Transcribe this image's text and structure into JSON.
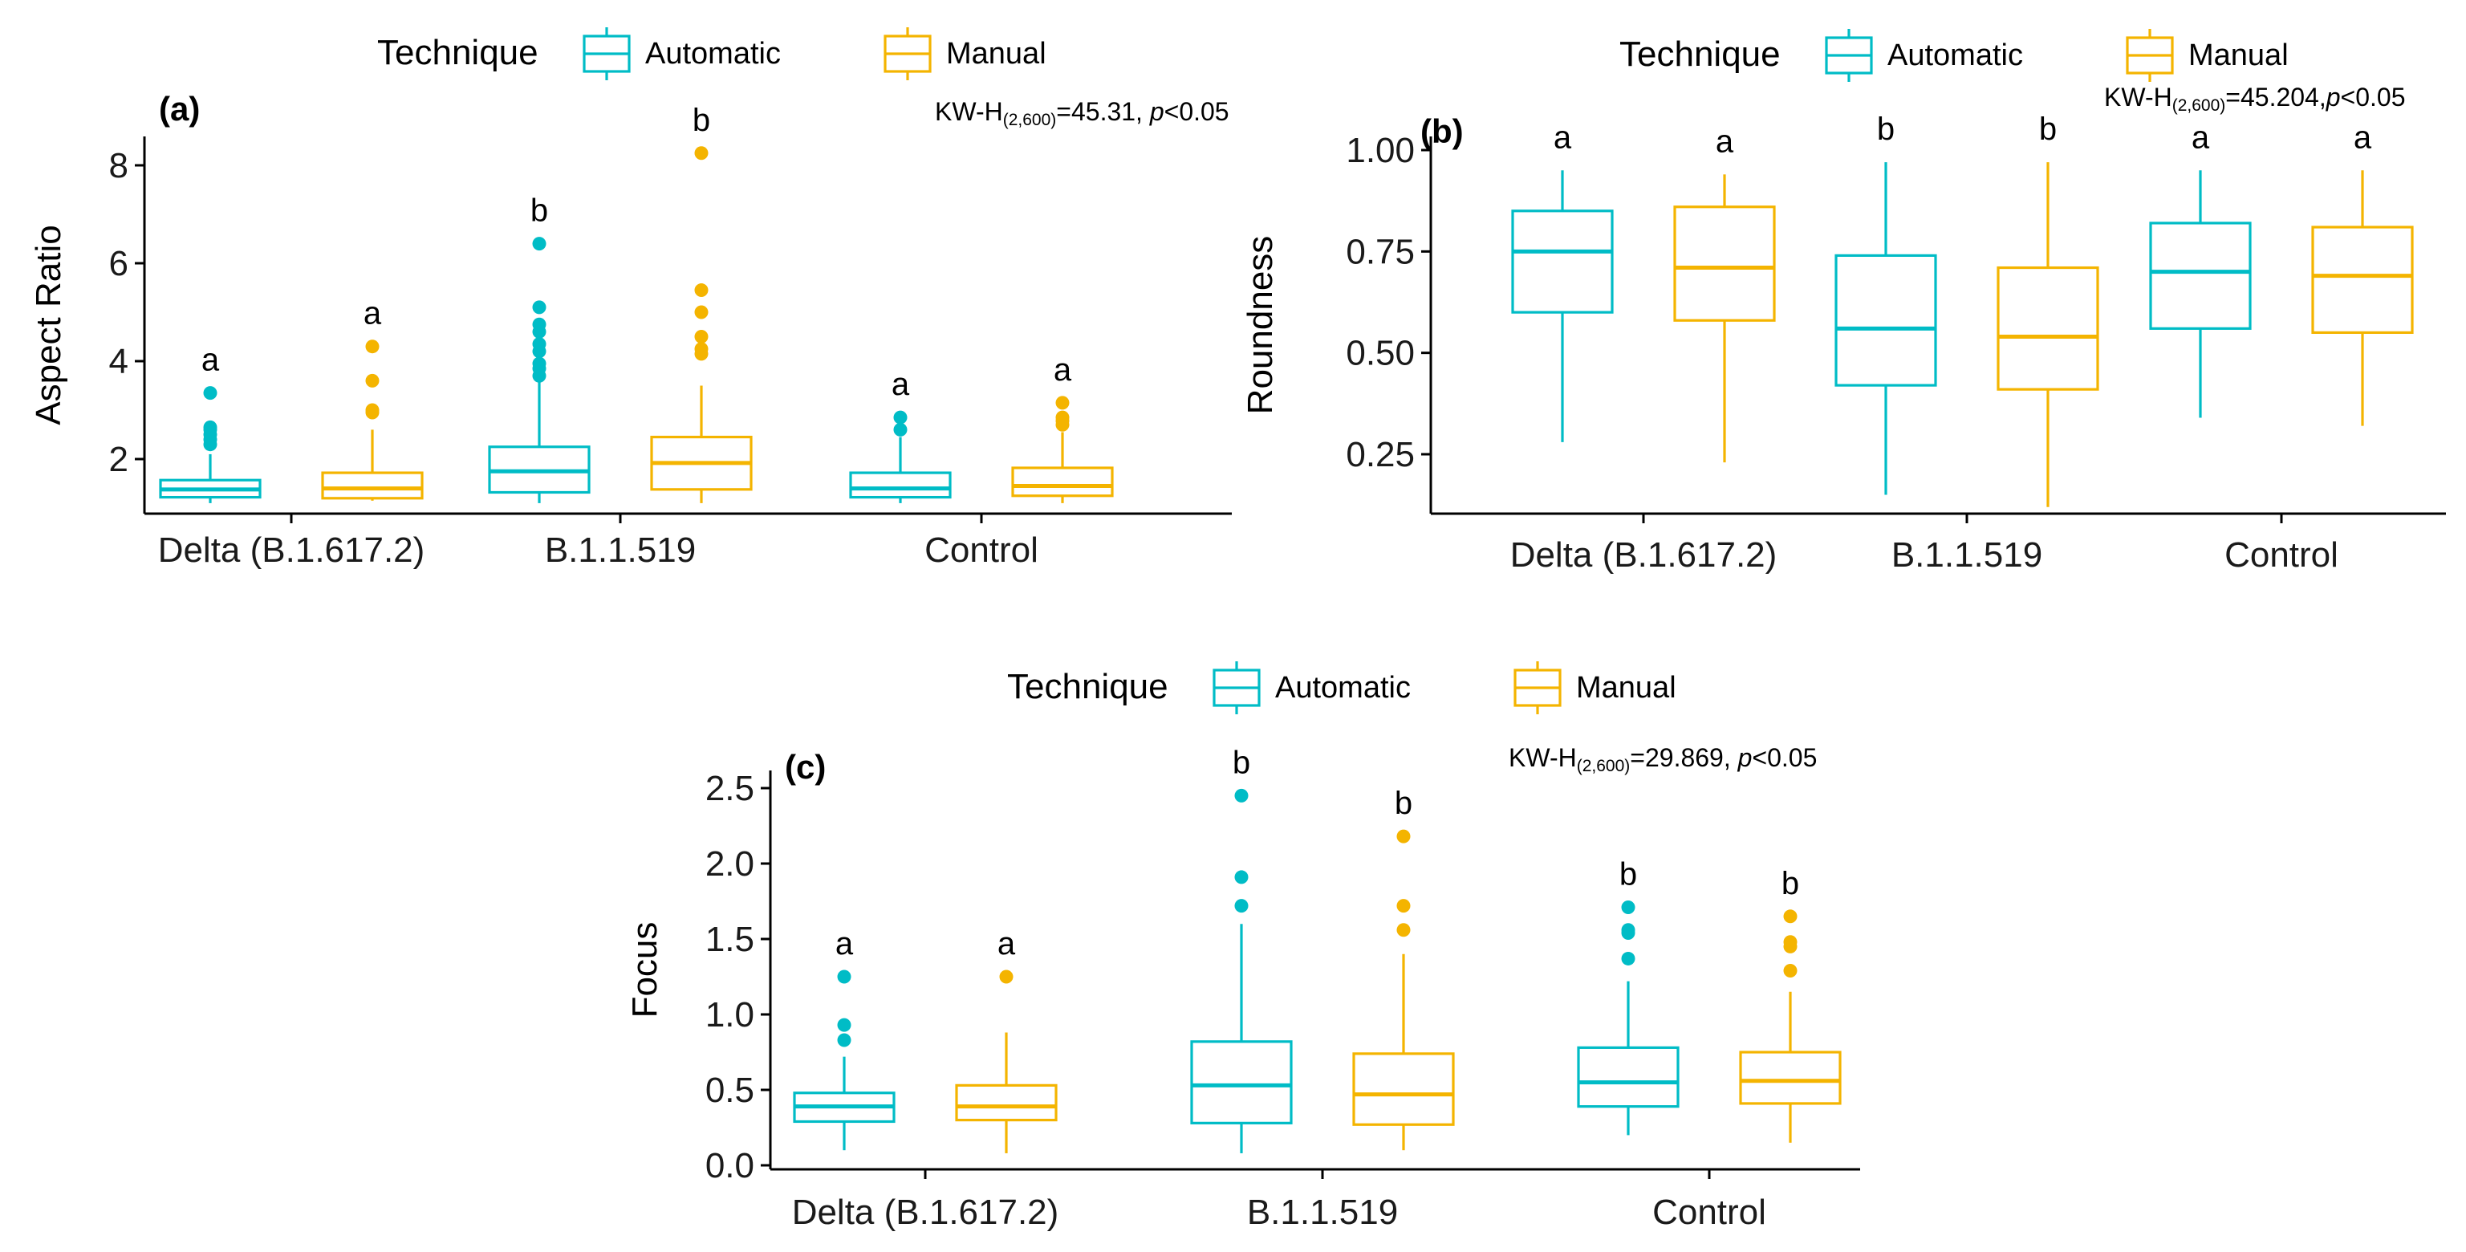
{
  "colors": {
    "automatic": "#00BCC6",
    "manual": "#F4B400",
    "axis": "#000000"
  },
  "legend": {
    "title": "Technique",
    "entries": [
      "Automatic",
      "Manual"
    ]
  },
  "chart_data": [
    {
      "type": "boxplot",
      "panel": "(a)",
      "ylabel": "Aspect Ratio",
      "xlabel": "",
      "ylim": [
        1.0,
        8.6
      ],
      "yticks": [
        "2",
        "4",
        "6",
        "8"
      ],
      "categories": [
        "Delta (B.1.617.2)",
        "B.1.1.519",
        "Control"
      ],
      "stat": {
        "pre": "KW-H",
        "sub": "(2,600)",
        "mid": "=45.31, ",
        "p": "p",
        "post": "<0.05"
      },
      "series": [
        {
          "name": "Automatic",
          "boxes": [
            {
              "whisker_low": 1.1,
              "q1": 1.22,
              "median": 1.38,
              "q3": 1.57,
              "whisker_high": 2.1,
              "outliers": [
                2.3,
                2.4,
                2.5,
                2.6,
                2.65,
                3.35
              ],
              "letter": "a"
            },
            {
              "whisker_low": 1.1,
              "q1": 1.32,
              "median": 1.75,
              "q3": 2.25,
              "whisker_high": 3.6,
              "outliers": [
                3.7,
                3.85,
                3.95,
                4.2,
                4.35,
                4.6,
                4.75,
                5.1,
                6.4
              ],
              "letter": "b"
            },
            {
              "whisker_low": 1.1,
              "q1": 1.22,
              "median": 1.4,
              "q3": 1.72,
              "whisker_high": 2.45,
              "outliers": [
                2.6,
                2.85
              ],
              "letter": "a"
            }
          ]
        },
        {
          "name": "Manual",
          "boxes": [
            {
              "whisker_low": 1.15,
              "q1": 1.2,
              "median": 1.4,
              "q3": 1.72,
              "whisker_high": 2.6,
              "outliers": [
                2.95,
                3.0,
                3.6,
                4.3
              ],
              "letter": "a"
            },
            {
              "whisker_low": 1.1,
              "q1": 1.38,
              "median": 1.92,
              "q3": 2.45,
              "whisker_high": 3.5,
              "outliers": [
                4.15,
                4.25,
                4.5,
                5.0,
                5.45,
                8.25
              ],
              "letter": "b"
            },
            {
              "whisker_low": 1.1,
              "q1": 1.25,
              "median": 1.45,
              "q3": 1.82,
              "whisker_high": 2.55,
              "outliers": [
                2.7,
                2.78,
                2.85,
                3.15
              ],
              "letter": "a"
            }
          ]
        }
      ]
    },
    {
      "type": "boxplot",
      "panel": "(b)",
      "ylabel": "Roundness",
      "xlabel": "",
      "ylim": [
        0.12,
        1.05
      ],
      "yticks": [
        "0.25",
        "0.50",
        "0.75",
        "1.00"
      ],
      "categories": [
        "Delta (B.1.617.2)",
        "B.1.1.519",
        "Control"
      ],
      "stat": {
        "pre": "KW-H",
        "sub": "(2,600)",
        "mid": "=45.204,",
        "p": "p",
        "post": "<0.05"
      },
      "series": [
        {
          "name": "Automatic",
          "boxes": [
            {
              "whisker_low": 0.28,
              "q1": 0.6,
              "median": 0.75,
              "q3": 0.85,
              "whisker_high": 0.95,
              "outliers": [],
              "letter": "a"
            },
            {
              "whisker_low": 0.15,
              "q1": 0.42,
              "median": 0.56,
              "q3": 0.74,
              "whisker_high": 0.97,
              "outliers": [],
              "letter": "b"
            },
            {
              "whisker_low": 0.34,
              "q1": 0.56,
              "median": 0.7,
              "q3": 0.82,
              "whisker_high": 0.95,
              "outliers": [],
              "letter": "a"
            }
          ]
        },
        {
          "name": "Manual",
          "boxes": [
            {
              "whisker_low": 0.23,
              "q1": 0.58,
              "median": 0.71,
              "q3": 0.86,
              "whisker_high": 0.94,
              "outliers": [],
              "letter": "a"
            },
            {
              "whisker_low": 0.12,
              "q1": 0.41,
              "median": 0.54,
              "q3": 0.71,
              "whisker_high": 0.97,
              "outliers": [],
              "letter": "b"
            },
            {
              "whisker_low": 0.32,
              "q1": 0.55,
              "median": 0.69,
              "q3": 0.81,
              "whisker_high": 0.95,
              "outliers": [],
              "letter": "a"
            }
          ]
        }
      ]
    },
    {
      "type": "boxplot",
      "panel": "(c)",
      "ylabel": "Focus",
      "xlabel": "",
      "ylim": [
        -0.03,
        2.62
      ],
      "yticks": [
        "0.0",
        "0.5",
        "1.0",
        "1.5",
        "2.0",
        "2.5"
      ],
      "categories": [
        "Delta (B.1.617.2)",
        "B.1.1.519",
        "Control"
      ],
      "stat": {
        "pre": "KW-H",
        "sub": "(2,600)",
        "mid": "=29.869, ",
        "p": "p",
        "post": "<0.05"
      },
      "series": [
        {
          "name": "Automatic",
          "boxes": [
            {
              "whisker_low": 0.1,
              "q1": 0.29,
              "median": 0.39,
              "q3": 0.48,
              "whisker_high": 0.72,
              "outliers": [
                0.83,
                0.93,
                1.25
              ],
              "letter": "a"
            },
            {
              "whisker_low": 0.08,
              "q1": 0.28,
              "median": 0.53,
              "q3": 0.82,
              "whisker_high": 1.6,
              "outliers": [
                1.72,
                1.91,
                2.45
              ],
              "letter": "b"
            },
            {
              "whisker_low": 0.2,
              "q1": 0.39,
              "median": 0.55,
              "q3": 0.78,
              "whisker_high": 1.22,
              "outliers": [
                1.37,
                1.54,
                1.56,
                1.71
              ],
              "letter": "b"
            }
          ]
        },
        {
          "name": "Manual",
          "boxes": [
            {
              "whisker_low": 0.08,
              "q1": 0.3,
              "median": 0.39,
              "q3": 0.53,
              "whisker_high": 0.88,
              "outliers": [
                1.25
              ],
              "letter": "a"
            },
            {
              "whisker_low": 0.1,
              "q1": 0.27,
              "median": 0.47,
              "q3": 0.74,
              "whisker_high": 1.4,
              "outliers": [
                1.56,
                1.72,
                2.18
              ],
              "letter": "b"
            },
            {
              "whisker_low": 0.15,
              "q1": 0.41,
              "median": 0.56,
              "q3": 0.75,
              "whisker_high": 1.15,
              "outliers": [
                1.29,
                1.45,
                1.48,
                1.65
              ],
              "letter": "b"
            }
          ]
        }
      ]
    }
  ]
}
